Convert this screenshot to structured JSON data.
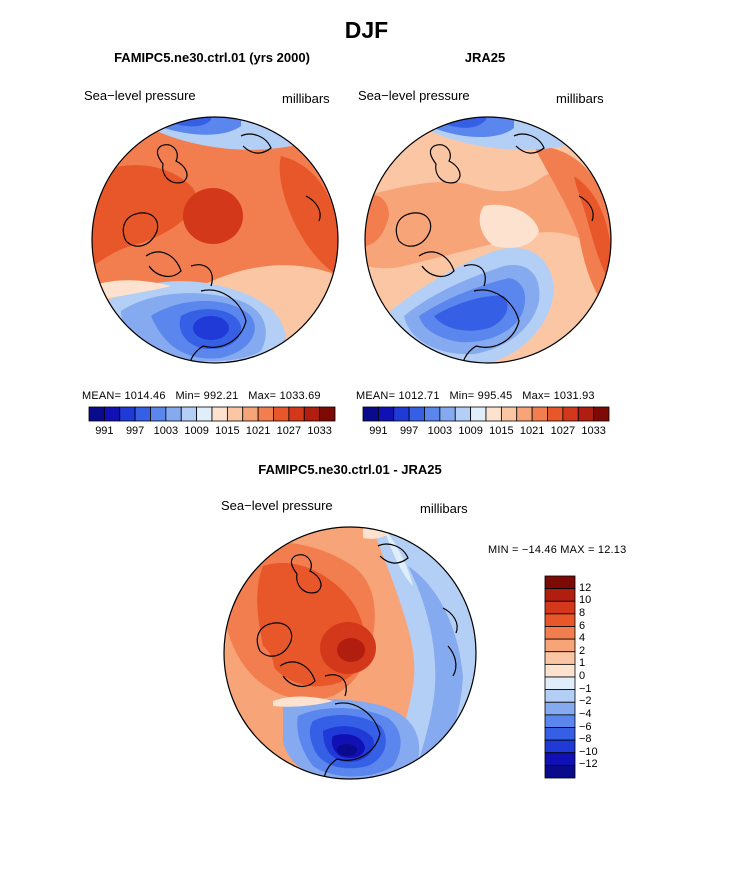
{
  "page": {
    "season_title": "DJF"
  },
  "panels": [
    {
      "title": "FAMIPC5.ne30.ctrl.01 (yrs 2000)",
      "left_label": "Sea−level pressure",
      "right_label": "millibars",
      "stats": {
        "mean_label": "MEAN=",
        "mean": "1014.46",
        "min_label": "Min=",
        "min": "992.21",
        "max_label": "Max=",
        "max": "1033.69"
      }
    },
    {
      "title": "JRA25",
      "left_label": "Sea−level pressure",
      "right_label": "millibars",
      "stats": {
        "mean_label": "MEAN=",
        "mean": "1012.71",
        "min_label": "Min=",
        "min": "995.45",
        "max_label": "Max=",
        "max": "1031.93"
      }
    }
  ],
  "diff_panel": {
    "title": "FAMIPC5.ne30.ctrl.01 - JRA25",
    "left_label": "Sea−level pressure",
    "right_label": "millibars",
    "minmax_text": "MIN = −14.46  MAX =   12.13"
  },
  "colorbar_abs": {
    "colors": [
      "#0a0a8c",
      "#1010b4",
      "#1f3ad6",
      "#3560e6",
      "#5a86ee",
      "#86aaf0",
      "#b4cff6",
      "#dfeefa",
      "#fde3cf",
      "#fbc6a4",
      "#f7a478",
      "#f27e4f",
      "#e8572a",
      "#d4381b",
      "#b11e10",
      "#7e0a06"
    ],
    "ticks": [
      "991",
      "997",
      "1003",
      "1009",
      "1015",
      "1021",
      "1027",
      "1033"
    ]
  },
  "colorbar_diff": {
    "colors": [
      "#7e0a06",
      "#b11e10",
      "#d4381b",
      "#e8572a",
      "#f27e4f",
      "#f7a478",
      "#fbc6a4",
      "#fde3cf",
      "#dfeefa",
      "#b4cff6",
      "#86aaf0",
      "#5a86ee",
      "#3560e6",
      "#1f3ad6",
      "#1010b4",
      "#0a0a8c"
    ],
    "ticks": [
      "12",
      "10",
      "8",
      "6",
      "4",
      "2",
      "1",
      "0",
      "−1",
      "−2",
      "−4",
      "−6",
      "−8",
      "−10",
      "−12"
    ]
  }
}
